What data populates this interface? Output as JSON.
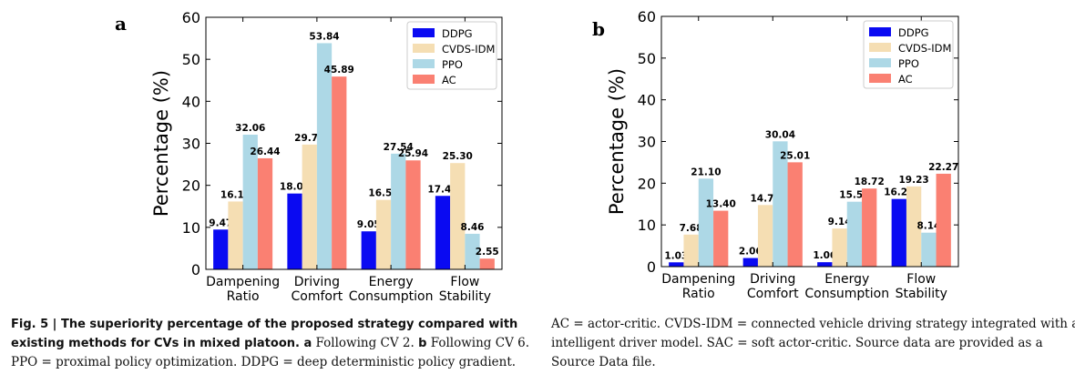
{
  "panel_a_label": "a",
  "panel_b_label": "b",
  "caption": {
    "left_lines": [
      {
        "bold": "Fig. 5 | The superiority percentage of the proposed strategy compared with",
        "plain": ""
      },
      {
        "bold": "existing methods for CVs in mixed platoon. a",
        "plain": " Following CV 2. "
      },
      {
        "bold": "",
        "plain": "PPO = proximal policy optimization. DDPG = deep deterministic policy gradient."
      }
    ],
    "left_line2_bold2": "b",
    "left_line2_plain2": " Following CV 6.",
    "right_lines": [
      "AC = actor-critic. CVDS-IDM = connected vehicle driving strategy integrated with an",
      "intelligent driver model. SAC = soft actor-critic. Source data are provided as a",
      "Source Data file."
    ]
  },
  "colors": {
    "DDPG": "#0a0af2",
    "CVDS-IDM": "#f5deb3",
    "PPO": "#add8e6",
    "AC": "#fa8072"
  },
  "chart_data": [
    {
      "type": "bar",
      "panel": "a",
      "categories": [
        "Dampening\nRatio",
        "Driving\nComfort",
        "Energy\nConsumption",
        "Flow\nStability"
      ],
      "ylabel": "Percentage (%)",
      "ylim": [
        0,
        60
      ],
      "yticks": [
        0,
        10,
        20,
        30,
        40,
        50,
        60
      ],
      "grid": false,
      "legend": "top-right",
      "series": [
        {
          "name": "DDPG",
          "values": [
            9.47,
            18.05,
            9.05,
            17.49
          ],
          "labels": [
            "9.47",
            "18.05",
            "9.05",
            "17.49"
          ]
        },
        {
          "name": "CVDS-IDM",
          "values": [
            16.15,
            29.7,
            16.54,
            25.3
          ],
          "labels": [
            "16.15",
            "29.70",
            "16.54",
            "25.30"
          ]
        },
        {
          "name": "PPO",
          "values": [
            32.06,
            53.84,
            27.54,
            8.46
          ],
          "labels": [
            "32.06",
            "53.84",
            "27.54",
            "8.46"
          ]
        },
        {
          "name": "AC",
          "values": [
            26.44,
            45.89,
            25.94,
            2.55
          ],
          "labels": [
            "26.44",
            "45.89",
            "25.94",
            "2.55"
          ]
        }
      ]
    },
    {
      "type": "bar",
      "panel": "b",
      "categories": [
        "Dampening\nRatio",
        "Driving\nComfort",
        "Energy\nConsumption",
        "Flow\nStability"
      ],
      "ylabel": "Percentage (%)",
      "ylim": [
        0,
        60
      ],
      "yticks": [
        0,
        10,
        20,
        30,
        40,
        50,
        60
      ],
      "grid": false,
      "legend": "top-right",
      "series": [
        {
          "name": "DDPG",
          "values": [
            1.03,
            2.06,
            1.06,
            16.22
          ],
          "labels": [
            "1.03",
            "2.06",
            "1.06",
            "16.22"
          ]
        },
        {
          "name": "CVDS-IDM",
          "values": [
            7.68,
            14.77,
            9.14,
            19.23
          ],
          "labels": [
            "7.68",
            "14.77",
            "9.14",
            "19.23"
          ]
        },
        {
          "name": "PPO",
          "values": [
            21.1,
            30.04,
            15.56,
            8.14
          ],
          "labels": [
            "21.10",
            "30.04",
            "15.56",
            "8.14"
          ]
        },
        {
          "name": "AC",
          "values": [
            13.4,
            25.01,
            18.72,
            22.27
          ],
          "labels": [
            "13.40",
            "25.01",
            "18.72",
            "22.27"
          ]
        }
      ]
    }
  ]
}
